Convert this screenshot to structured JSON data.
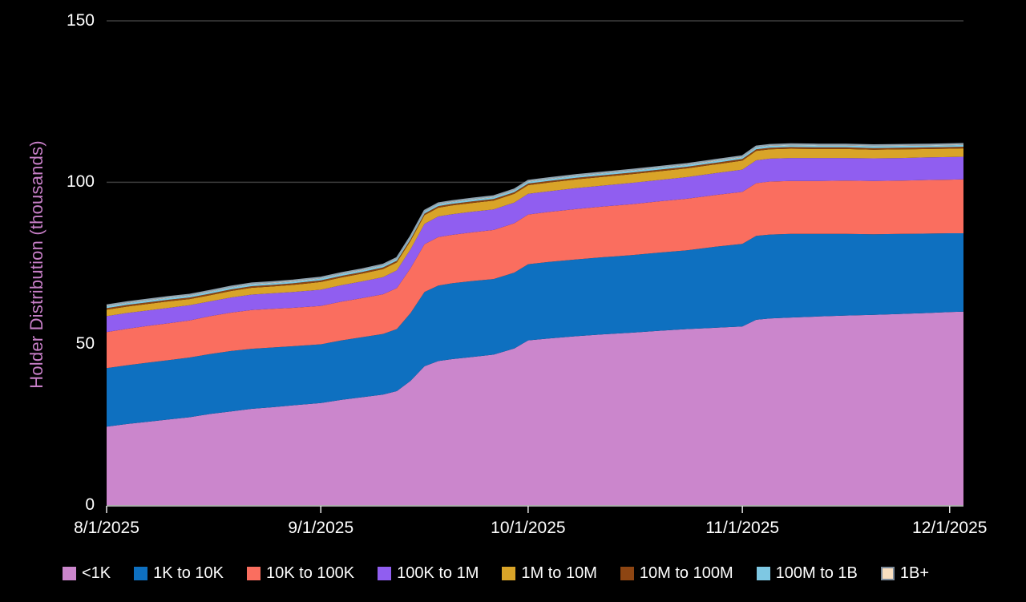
{
  "colors": {
    "background": "#000000",
    "grid": "#3D3D3D",
    "axis_line": "#E6E6E6",
    "tick_text": "#FFFFFF",
    "y_axis_title": "#C77FC7",
    "stack_top_line": "#8FA2B0"
  },
  "chart_data": {
    "type": "area",
    "stacked": true,
    "title": "",
    "xlabel": "",
    "ylabel": "Holder Distribution (thousands)",
    "ylim": [
      0,
      150
    ],
    "yticks": [
      0,
      50,
      100,
      150
    ],
    "xticks": [
      "8/1/2025",
      "9/1/2025",
      "10/1/2025",
      "11/1/2025",
      "12/1/2025"
    ],
    "x_start": "8/1/2025",
    "x_end": "12/3/2025",
    "grid": "horizontal",
    "legend_position": "bottom",
    "dates": [
      "8/1/2025",
      "8/4/2025",
      "8/7/2025",
      "8/10/2025",
      "8/13/2025",
      "8/16/2025",
      "8/19/2025",
      "8/22/2025",
      "8/25/2025",
      "8/28/2025",
      "9/1/2025",
      "9/4/2025",
      "9/7/2025",
      "9/10/2025",
      "9/12/2025",
      "9/14/2025",
      "9/16/2025",
      "9/18/2025",
      "9/20/2025",
      "9/23/2025",
      "9/26/2025",
      "9/29/2025",
      "10/1/2025",
      "10/4/2025",
      "10/8/2025",
      "10/12/2025",
      "10/16/2025",
      "10/20/2025",
      "10/24/2025",
      "10/28/2025",
      "11/1/2025",
      "11/3/2025",
      "11/5/2025",
      "11/8/2025",
      "11/12/2025",
      "11/16/2025",
      "11/20/2025",
      "11/24/2025",
      "11/28/2025",
      "12/1/2025",
      "12/3/2025"
    ],
    "series": [
      {
        "name": "<1K",
        "color": "#CB86CC",
        "values": [
          24.3,
          25.1,
          25.8,
          26.5,
          27.2,
          28.2,
          29.0,
          29.8,
          30.3,
          30.9,
          31.6,
          32.6,
          33.4,
          34.2,
          35.3,
          38.5,
          43.0,
          44.6,
          45.2,
          45.9,
          46.6,
          48.5,
          51.0,
          51.6,
          52.3,
          52.9,
          53.4,
          54.0,
          54.5,
          54.9,
          55.3,
          57.4,
          57.8,
          58.1,
          58.4,
          58.7,
          58.9,
          59.2,
          59.5,
          59.8,
          59.9
        ]
      },
      {
        "name": "1K to 10K",
        "color": "#0E70C0",
        "values": [
          18.1,
          18.2,
          18.3,
          18.4,
          18.5,
          18.6,
          18.7,
          18.6,
          18.5,
          18.3,
          18.2,
          18.4,
          18.6,
          18.8,
          19.2,
          21.0,
          23.0,
          23.4,
          23.5,
          23.5,
          23.4,
          23.5,
          23.6,
          23.7,
          23.8,
          23.9,
          24.0,
          24.2,
          24.4,
          25.1,
          25.6,
          26.0,
          26.0,
          25.9,
          25.6,
          25.3,
          25.0,
          24.8,
          24.6,
          24.4,
          24.3
        ]
      },
      {
        "name": "10K to 100K",
        "color": "#FA6E5F",
        "values": [
          11.2,
          11.3,
          11.4,
          11.4,
          11.5,
          11.7,
          11.9,
          12.0,
          12.0,
          11.9,
          11.9,
          12.0,
          12.1,
          12.3,
          12.7,
          13.9,
          14.8,
          15.0,
          15.0,
          15.1,
          15.2,
          15.3,
          15.4,
          15.5,
          15.6,
          15.7,
          15.8,
          15.9,
          16.0,
          16.0,
          16.1,
          16.3,
          16.4,
          16.4,
          16.4,
          16.5,
          16.5,
          16.5,
          16.6,
          16.6,
          16.7
        ]
      },
      {
        "name": "100K to 1M",
        "color": "#905EF0",
        "values": [
          4.9,
          4.9,
          4.8,
          4.8,
          4.7,
          4.6,
          4.7,
          4.8,
          4.8,
          4.9,
          5.0,
          5.1,
          5.2,
          5.3,
          5.5,
          5.9,
          6.3,
          6.4,
          6.4,
          6.4,
          6.4,
          6.4,
          6.4,
          6.4,
          6.5,
          6.5,
          6.6,
          6.6,
          6.7,
          6.8,
          6.9,
          7.1,
          7.1,
          7.1,
          7.1,
          7.0,
          7.0,
          7.0,
          7.0,
          7.0,
          7.0
        ]
      },
      {
        "name": "1M to 10M",
        "color": "#D9A428",
        "values": [
          2.0,
          2.0,
          2.0,
          2.0,
          1.9,
          1.9,
          2.0,
          2.1,
          2.1,
          2.2,
          2.4,
          2.4,
          2.4,
          2.5,
          2.5,
          2.6,
          2.7,
          2.7,
          2.7,
          2.7,
          2.7,
          2.7,
          2.7,
          2.7,
          2.7,
          2.7,
          2.7,
          2.7,
          2.7,
          2.7,
          2.8,
          2.9,
          2.9,
          2.9,
          2.8,
          2.8,
          2.7,
          2.7,
          2.6,
          2.6,
          2.6
        ]
      },
      {
        "name": "10M to 100M",
        "color": "#8D4512",
        "values": [
          0.5,
          0.5,
          0.5,
          0.5,
          0.5,
          0.5,
          0.5,
          0.5,
          0.5,
          0.5,
          0.5,
          0.5,
          0.5,
          0.5,
          0.5,
          0.5,
          0.5,
          0.5,
          0.5,
          0.5,
          0.5,
          0.5,
          0.5,
          0.5,
          0.5,
          0.5,
          0.5,
          0.5,
          0.5,
          0.5,
          0.5,
          0.5,
          0.5,
          0.5,
          0.5,
          0.5,
          0.5,
          0.5,
          0.5,
          0.5,
          0.5
        ]
      },
      {
        "name": "100M to 1B",
        "color": "#7EC8E3",
        "values": [
          0.55,
          0.55,
          0.55,
          0.55,
          0.55,
          0.55,
          0.55,
          0.55,
          0.55,
          0.55,
          0.55,
          0.55,
          0.55,
          0.55,
          0.55,
          0.55,
          0.55,
          0.55,
          0.55,
          0.55,
          0.55,
          0.55,
          0.55,
          0.55,
          0.55,
          0.55,
          0.55,
          0.55,
          0.55,
          0.55,
          0.55,
          0.55,
          0.55,
          0.55,
          0.55,
          0.55,
          0.55,
          0.55,
          0.55,
          0.55,
          0.55
        ]
      },
      {
        "name": "1B+",
        "color": "#F8DFC0",
        "swatch_border": "#7C8A99",
        "values": [
          0.35,
          0.35,
          0.35,
          0.35,
          0.35,
          0.35,
          0.35,
          0.35,
          0.35,
          0.35,
          0.35,
          0.35,
          0.35,
          0.35,
          0.35,
          0.35,
          0.35,
          0.35,
          0.35,
          0.35,
          0.35,
          0.35,
          0.35,
          0.35,
          0.35,
          0.35,
          0.35,
          0.35,
          0.35,
          0.35,
          0.35,
          0.35,
          0.35,
          0.35,
          0.35,
          0.35,
          0.35,
          0.35,
          0.35,
          0.35,
          0.35
        ]
      }
    ]
  }
}
